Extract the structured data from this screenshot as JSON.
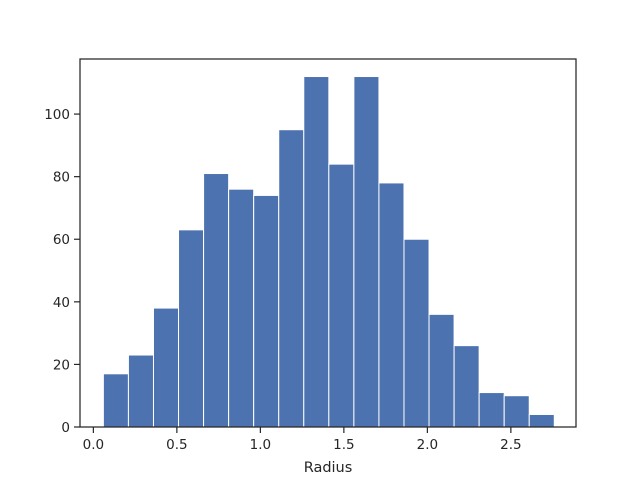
{
  "chart_data": {
    "type": "bar",
    "subtype": "histogram",
    "title": "",
    "xlabel": "Radius",
    "ylabel": "",
    "xlim": [
      -0.08,
      2.89
    ],
    "ylim": [
      0,
      117.6
    ],
    "bin_edges": [
      0.06,
      0.21,
      0.36,
      0.51,
      0.66,
      0.81,
      0.96,
      1.11,
      1.26,
      1.41,
      1.56,
      1.71,
      1.86,
      2.01,
      2.16,
      2.31,
      2.46,
      2.61,
      2.76
    ],
    "values": [
      17,
      23,
      38,
      63,
      81,
      76,
      74,
      95,
      112,
      84,
      112,
      78,
      60,
      36,
      26,
      11,
      10,
      4
    ],
    "xticks": [
      0.0,
      0.5,
      1.0,
      1.5,
      2.0,
      2.5
    ],
    "xtick_labels": [
      "0.0",
      "0.5",
      "1.0",
      "1.5",
      "2.0",
      "2.5"
    ],
    "yticks": [
      0,
      20,
      40,
      60,
      80,
      100
    ],
    "ytick_labels": [
      "0",
      "20",
      "40",
      "60",
      "80",
      "100"
    ],
    "bar_color": "#4c72b0",
    "edge_color": "#ffffff",
    "grid": false,
    "legend": "none"
  }
}
